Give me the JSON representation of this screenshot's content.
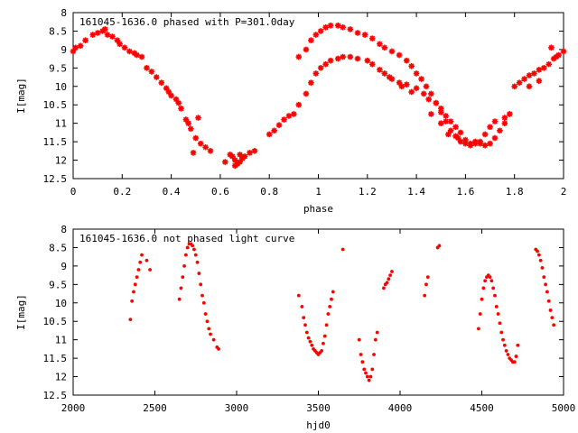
{
  "colors": {
    "marker": "#ff0000",
    "axis": "#000000",
    "background": "#ffffff"
  },
  "chart_data": [
    {
      "type": "scatter",
      "title": "161045-1636.0 phased with P=301.0day",
      "xlabel": "phase",
      "ylabel": "I[mag]",
      "xlim": [
        0,
        2
      ],
      "ylim": [
        8,
        12.5
      ],
      "y_inverted": true,
      "grid": false,
      "marker": "star",
      "x_ticks": [
        "0",
        "0.2",
        "0.4",
        "0.6",
        "0.8",
        "1",
        "1.2",
        "1.4",
        "1.6",
        "1.8",
        "2"
      ],
      "y_ticks": [
        "8",
        "8.5",
        "9",
        "9.5",
        "10",
        "10.5",
        "11",
        "11.5",
        "12",
        "12.5"
      ],
      "series": [
        {
          "points": [
            [
              0.0,
              9.05
            ],
            [
              0.01,
              8.95
            ],
            [
              0.03,
              8.9
            ],
            [
              0.05,
              8.75
            ],
            [
              0.08,
              8.6
            ],
            [
              0.1,
              8.55
            ],
            [
              0.12,
              8.5
            ],
            [
              0.13,
              8.45
            ],
            [
              0.14,
              8.6
            ],
            [
              0.16,
              8.65
            ],
            [
              0.18,
              8.75
            ],
            [
              0.19,
              8.85
            ],
            [
              0.21,
              8.95
            ],
            [
              0.23,
              9.05
            ],
            [
              0.25,
              9.1
            ],
            [
              0.26,
              9.15
            ],
            [
              0.28,
              9.2
            ],
            [
              0.3,
              9.5
            ],
            [
              0.32,
              9.6
            ],
            [
              0.34,
              9.75
            ],
            [
              0.36,
              9.9
            ],
            [
              0.38,
              10.05
            ],
            [
              0.39,
              10.15
            ],
            [
              0.4,
              10.25
            ],
            [
              0.42,
              10.35
            ],
            [
              0.43,
              10.45
            ],
            [
              0.44,
              10.6
            ],
            [
              0.46,
              10.9
            ],
            [
              0.48,
              11.15
            ],
            [
              0.5,
              11.4
            ],
            [
              0.52,
              11.55
            ],
            [
              0.54,
              11.65
            ],
            [
              0.56,
              11.75
            ],
            [
              0.49,
              11.8
            ],
            [
              0.47,
              11.0
            ],
            [
              0.51,
              10.85
            ],
            [
              0.65,
              11.9
            ],
            [
              0.66,
              12.0
            ],
            [
              0.67,
              12.1
            ],
            [
              0.68,
              12.05
            ],
            [
              0.69,
              11.95
            ],
            [
              0.7,
              11.9
            ],
            [
              0.72,
              11.8
            ],
            [
              0.74,
              11.75
            ],
            [
              0.66,
              12.15
            ],
            [
              0.68,
              11.85
            ],
            [
              0.8,
              11.3
            ],
            [
              0.82,
              11.2
            ],
            [
              0.84,
              11.05
            ],
            [
              0.86,
              10.9
            ],
            [
              0.88,
              10.8
            ],
            [
              0.9,
              10.75
            ],
            [
              0.92,
              10.5
            ],
            [
              0.95,
              10.2
            ],
            [
              0.97,
              9.9
            ],
            [
              0.99,
              9.65
            ],
            [
              1.01,
              9.5
            ],
            [
              1.03,
              9.4
            ],
            [
              1.05,
              9.3
            ],
            [
              1.08,
              9.25
            ],
            [
              1.1,
              9.2
            ],
            [
              1.13,
              9.2
            ],
            [
              1.16,
              9.25
            ],
            [
              1.2,
              9.3
            ],
            [
              1.22,
              9.4
            ],
            [
              1.25,
              9.55
            ],
            [
              1.27,
              9.65
            ],
            [
              1.29,
              9.75
            ],
            [
              1.3,
              9.8
            ],
            [
              1.33,
              9.9
            ],
            [
              1.36,
              9.95
            ],
            [
              1.4,
              10.05
            ],
            [
              1.43,
              10.2
            ],
            [
              1.45,
              10.35
            ],
            [
              1.48,
              10.45
            ],
            [
              1.5,
              10.6
            ],
            [
              1.52,
              10.8
            ],
            [
              1.54,
              10.95
            ],
            [
              1.56,
              11.1
            ],
            [
              1.58,
              11.25
            ],
            [
              1.6,
              11.45
            ],
            [
              1.62,
              11.55
            ],
            [
              1.64,
              11.5
            ],
            [
              1.66,
              11.55
            ],
            [
              1.68,
              11.6
            ],
            [
              1.7,
              11.55
            ],
            [
              1.72,
              11.4
            ],
            [
              1.74,
              11.2
            ],
            [
              1.76,
              11.0
            ],
            [
              1.78,
              10.75
            ],
            [
              0.92,
              9.2
            ],
            [
              0.95,
              9.0
            ],
            [
              0.97,
              8.75
            ],
            [
              0.99,
              8.6
            ],
            [
              1.01,
              8.5
            ],
            [
              1.03,
              8.4
            ],
            [
              1.05,
              8.35
            ],
            [
              1.08,
              8.35
            ],
            [
              1.1,
              8.4
            ],
            [
              1.13,
              8.45
            ],
            [
              1.16,
              8.55
            ],
            [
              1.19,
              8.6
            ],
            [
              1.22,
              8.7
            ],
            [
              1.25,
              8.85
            ],
            [
              1.27,
              8.95
            ],
            [
              1.3,
              9.05
            ],
            [
              1.33,
              9.15
            ],
            [
              1.36,
              9.3
            ],
            [
              1.38,
              9.45
            ],
            [
              1.4,
              9.65
            ],
            [
              1.42,
              9.8
            ],
            [
              1.44,
              10.0
            ],
            [
              1.46,
              10.2
            ],
            [
              1.48,
              10.45
            ],
            [
              1.5,
              10.7
            ],
            [
              1.52,
              10.95
            ],
            [
              1.54,
              11.2
            ],
            [
              1.56,
              11.35
            ],
            [
              1.58,
              11.5
            ],
            [
              1.6,
              11.55
            ],
            [
              1.62,
              11.6
            ],
            [
              1.64,
              11.55
            ],
            [
              1.66,
              11.5
            ],
            [
              1.68,
              11.3
            ],
            [
              1.7,
              11.1
            ],
            [
              1.72,
              10.95
            ],
            [
              1.76,
              10.85
            ],
            [
              1.8,
              10.0
            ],
            [
              1.82,
              9.9
            ],
            [
              1.84,
              9.8
            ],
            [
              1.86,
              9.7
            ],
            [
              1.88,
              9.65
            ],
            [
              1.9,
              9.55
            ],
            [
              1.92,
              9.5
            ],
            [
              1.94,
              9.4
            ],
            [
              1.96,
              9.25
            ],
            [
              1.98,
              9.15
            ],
            [
              2.0,
              9.05
            ],
            [
              1.86,
              10.0
            ],
            [
              1.9,
              9.85
            ],
            [
              1.95,
              8.95
            ],
            [
              1.97,
              9.2
            ],
            [
              0.62,
              12.05
            ],
            [
              0.64,
              11.85
            ],
            [
              1.34,
              10.0
            ],
            [
              1.38,
              10.15
            ],
            [
              1.46,
              10.75
            ],
            [
              1.5,
              11.0
            ],
            [
              1.53,
              11.3
            ],
            [
              1.57,
              11.4
            ]
          ]
        }
      ]
    },
    {
      "type": "scatter",
      "title": "161045-1636.0 not phased light curve",
      "xlabel": "hjd0",
      "ylabel": "I[mag]",
      "xlim": [
        2000,
        5000
      ],
      "ylim": [
        8,
        12.5
      ],
      "y_inverted": true,
      "grid": false,
      "marker": "dot",
      "x_ticks": [
        "2000",
        "2500",
        "3000",
        "3500",
        "4000",
        "4500",
        "5000"
      ],
      "y_ticks": [
        "8",
        "8.5",
        "9",
        "9.5",
        "10",
        "10.5",
        "11",
        "11.5",
        "12",
        "12.5"
      ],
      "series": [
        {
          "points": [
            [
              2350,
              10.45
            ],
            [
              2360,
              9.95
            ],
            [
              2370,
              9.7
            ],
            [
              2380,
              9.5
            ],
            [
              2390,
              9.3
            ],
            [
              2400,
              9.1
            ],
            [
              2410,
              8.9
            ],
            [
              2420,
              8.7
            ],
            [
              2450,
              8.85
            ],
            [
              2470,
              9.1
            ],
            [
              2650,
              9.9
            ],
            [
              2660,
              9.6
            ],
            [
              2670,
              9.3
            ],
            [
              2680,
              9.0
            ],
            [
              2690,
              8.7
            ],
            [
              2700,
              8.5
            ],
            [
              2710,
              8.4
            ],
            [
              2720,
              8.4
            ],
            [
              2730,
              8.45
            ],
            [
              2740,
              8.55
            ],
            [
              2750,
              8.7
            ],
            [
              2760,
              8.9
            ],
            [
              2770,
              9.2
            ],
            [
              2780,
              9.5
            ],
            [
              2790,
              9.8
            ],
            [
              2800,
              10.0
            ],
            [
              2810,
              10.3
            ],
            [
              2820,
              10.5
            ],
            [
              2830,
              10.7
            ],
            [
              2840,
              10.85
            ],
            [
              2860,
              11.0
            ],
            [
              2880,
              11.2
            ],
            [
              2890,
              11.25
            ],
            [
              3380,
              9.8
            ],
            [
              3400,
              10.1
            ],
            [
              3410,
              10.4
            ],
            [
              3420,
              10.6
            ],
            [
              3430,
              10.8
            ],
            [
              3440,
              10.95
            ],
            [
              3450,
              11.05
            ],
            [
              3460,
              11.15
            ],
            [
              3470,
              11.25
            ],
            [
              3480,
              11.3
            ],
            [
              3490,
              11.35
            ],
            [
              3500,
              11.4
            ],
            [
              3510,
              11.35
            ],
            [
              3520,
              11.3
            ],
            [
              3530,
              11.1
            ],
            [
              3540,
              10.9
            ],
            [
              3550,
              10.6
            ],
            [
              3560,
              10.3
            ],
            [
              3570,
              10.1
            ],
            [
              3580,
              9.9
            ],
            [
              3590,
              9.7
            ],
            [
              3650,
              8.55
            ],
            [
              3750,
              11.0
            ],
            [
              3760,
              11.4
            ],
            [
              3770,
              11.6
            ],
            [
              3780,
              11.8
            ],
            [
              3790,
              11.9
            ],
            [
              3800,
              12.0
            ],
            [
              3810,
              12.1
            ],
            [
              3820,
              12.0
            ],
            [
              3830,
              11.8
            ],
            [
              3840,
              11.4
            ],
            [
              3850,
              11.0
            ],
            [
              3860,
              10.8
            ],
            [
              3900,
              9.6
            ],
            [
              3910,
              9.5
            ],
            [
              3920,
              9.45
            ],
            [
              3930,
              9.35
            ],
            [
              3940,
              9.25
            ],
            [
              3950,
              9.15
            ],
            [
              4150,
              9.8
            ],
            [
              4160,
              9.5
            ],
            [
              4170,
              9.3
            ],
            [
              4230,
              8.5
            ],
            [
              4240,
              8.45
            ],
            [
              4480,
              10.7
            ],
            [
              4490,
              10.3
            ],
            [
              4500,
              9.9
            ],
            [
              4510,
              9.6
            ],
            [
              4520,
              9.4
            ],
            [
              4530,
              9.3
            ],
            [
              4540,
              9.25
            ],
            [
              4550,
              9.3
            ],
            [
              4560,
              9.4
            ],
            [
              4570,
              9.6
            ],
            [
              4580,
              9.8
            ],
            [
              4590,
              10.1
            ],
            [
              4600,
              10.3
            ],
            [
              4610,
              10.55
            ],
            [
              4620,
              10.8
            ],
            [
              4630,
              11.0
            ],
            [
              4640,
              11.15
            ],
            [
              4650,
              11.3
            ],
            [
              4660,
              11.4
            ],
            [
              4670,
              11.5
            ],
            [
              4680,
              11.55
            ],
            [
              4690,
              11.6
            ],
            [
              4700,
              11.6
            ],
            [
              4710,
              11.45
            ],
            [
              4720,
              11.15
            ],
            [
              4830,
              8.55
            ],
            [
              4840,
              8.6
            ],
            [
              4850,
              8.7
            ],
            [
              4860,
              8.85
            ],
            [
              4870,
              9.05
            ],
            [
              4880,
              9.3
            ],
            [
              4890,
              9.5
            ],
            [
              4900,
              9.7
            ],
            [
              4910,
              9.95
            ],
            [
              4920,
              10.2
            ],
            [
              4930,
              10.4
            ],
            [
              4940,
              10.6
            ]
          ]
        }
      ]
    }
  ]
}
